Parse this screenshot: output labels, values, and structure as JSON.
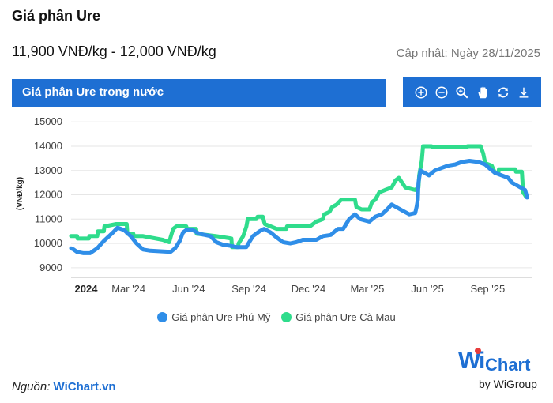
{
  "page": {
    "title": "Giá phân Ure",
    "price_range": "11,900 VNĐ/kg - 12,000 VNĐ/kg",
    "updated": "Cập nhật: Ngày 28/11/2025",
    "section_title": "Giá phân Ure trong nước",
    "source_prefix": "Nguồn: ",
    "source_link": "WiChart.vn",
    "logo_w": "Wi",
    "logo_rest": "Chart",
    "logo_by": "by WiGroup"
  },
  "toolbar": {
    "items": [
      {
        "name": "zoom-in-icon"
      },
      {
        "name": "zoom-out-icon"
      },
      {
        "name": "magnify-icon"
      },
      {
        "name": "pan-hand-icon"
      },
      {
        "name": "reset-icon"
      },
      {
        "name": "download-icon"
      }
    ],
    "color": "#1e6fd3"
  },
  "chart_data": {
    "type": "line",
    "ylabel": "(VNĐ/kg)",
    "xlabel": "",
    "title": "",
    "ylim": [
      8800,
      15300
    ],
    "yticks": [
      9000,
      10000,
      11000,
      12000,
      13000,
      14000,
      15000
    ],
    "ytick_labels": [
      "9000",
      "10000",
      "11000",
      "12000",
      "13000",
      "14000",
      "15000"
    ],
    "x_range": [
      "2024-01-01",
      "2025-12-05"
    ],
    "xticks": [
      {
        "date": "2024-01-01",
        "label": "2024",
        "bold": true
      },
      {
        "date": "2024-03-01",
        "label": "Mar '24",
        "bold": false
      },
      {
        "date": "2024-06-01",
        "label": "Jun '24",
        "bold": false
      },
      {
        "date": "2024-09-01",
        "label": "Sep '24",
        "bold": false
      },
      {
        "date": "2024-12-01",
        "label": "Dec '24",
        "bold": false
      },
      {
        "date": "2025-03-01",
        "label": "Mar '25",
        "bold": false
      },
      {
        "date": "2025-06-01",
        "label": "Jun '25",
        "bold": false
      },
      {
        "date": "2025-09-01",
        "label": "Sep '25",
        "bold": false
      }
    ],
    "grid": true,
    "legend_position": "bottom",
    "series": [
      {
        "name": "Giá phân Ure Cà Mau",
        "color": "#2fdc8c",
        "points": [
          [
            "2024-01-01",
            10300
          ],
          [
            "2024-01-10",
            10300
          ],
          [
            "2024-01-11",
            10200
          ],
          [
            "2024-01-28",
            10200
          ],
          [
            "2024-01-29",
            10300
          ],
          [
            "2024-02-10",
            10300
          ],
          [
            "2024-02-11",
            10500
          ],
          [
            "2024-02-20",
            10500
          ],
          [
            "2024-02-21",
            10700
          ],
          [
            "2024-03-01",
            10750
          ],
          [
            "2024-03-10",
            10800
          ],
          [
            "2024-03-26",
            10800
          ],
          [
            "2024-03-27",
            10400
          ],
          [
            "2024-04-05",
            10400
          ],
          [
            "2024-04-06",
            10300
          ],
          [
            "2024-04-20",
            10300
          ],
          [
            "2024-05-20",
            10150
          ],
          [
            "2024-05-30",
            10050
          ],
          [
            "2024-06-01",
            10250
          ],
          [
            "2024-06-05",
            10600
          ],
          [
            "2024-06-10",
            10700
          ],
          [
            "2024-06-25",
            10700
          ],
          [
            "2024-06-26",
            10600
          ],
          [
            "2024-07-10",
            10600
          ],
          [
            "2024-07-11",
            10400
          ],
          [
            "2024-08-10",
            10300
          ],
          [
            "2024-09-02",
            10200
          ],
          [
            "2024-09-03",
            9850
          ],
          [
            "2024-09-12",
            9850
          ],
          [
            "2024-09-13",
            10000
          ],
          [
            "2024-09-20",
            10300
          ],
          [
            "2024-09-25",
            10700
          ],
          [
            "2024-09-27",
            11000
          ],
          [
            "2024-10-10",
            11000
          ],
          [
            "2024-10-12",
            11100
          ],
          [
            "2024-10-20",
            11100
          ],
          [
            "2024-10-23",
            10800
          ],
          [
            "2024-11-01",
            10700
          ],
          [
            "2024-11-10",
            10600
          ],
          [
            "2024-11-25",
            10600
          ],
          [
            "2024-11-26",
            10700
          ],
          [
            "2024-12-31",
            10700
          ],
          [
            "2025-01-10",
            10900
          ],
          [
            "2025-01-20",
            11000
          ],
          [
            "2025-01-22",
            11200
          ],
          [
            "2025-01-30",
            11300
          ],
          [
            "2025-02-03",
            11500
          ],
          [
            "2025-02-10",
            11600
          ],
          [
            "2025-02-17",
            11800
          ],
          [
            "2025-03-10",
            11800
          ],
          [
            "2025-03-12",
            11500
          ],
          [
            "2025-03-20",
            11400
          ],
          [
            "2025-04-01",
            11400
          ],
          [
            "2025-04-05",
            11700
          ],
          [
            "2025-04-10",
            11800
          ],
          [
            "2025-04-16",
            12100
          ],
          [
            "2025-04-25",
            12200
          ],
          [
            "2025-05-05",
            12300
          ],
          [
            "2025-05-11",
            12600
          ],
          [
            "2025-05-16",
            12700
          ],
          [
            "2025-05-21",
            12500
          ],
          [
            "2025-05-26",
            12300
          ],
          [
            "2025-06-10",
            12200
          ],
          [
            "2025-06-15",
            12300
          ],
          [
            "2025-06-16",
            12800
          ],
          [
            "2025-06-20",
            13400
          ],
          [
            "2025-06-22",
            14000
          ],
          [
            "2025-07-05",
            14000
          ],
          [
            "2025-07-06",
            13950
          ],
          [
            "2025-08-28",
            13950
          ],
          [
            "2025-08-29",
            14000
          ],
          [
            "2025-09-18",
            14000
          ],
          [
            "2025-09-22",
            13700
          ],
          [
            "2025-09-25",
            13300
          ],
          [
            "2025-10-05",
            13200
          ],
          [
            "2025-10-10",
            12900
          ],
          [
            "2025-10-15",
            12900
          ],
          [
            "2025-10-16",
            13050
          ],
          [
            "2025-11-10",
            13050
          ],
          [
            "2025-11-11",
            12950
          ],
          [
            "2025-11-20",
            12950
          ],
          [
            "2025-11-22",
            12100
          ],
          [
            "2025-11-26",
            11950
          ]
        ]
      },
      {
        "name": "Giá phân Ure Phú Mỹ",
        "color": "#2f8ee8",
        "points": [
          [
            "2024-01-01",
            9800
          ],
          [
            "2024-01-05",
            9750
          ],
          [
            "2024-01-10",
            9650
          ],
          [
            "2024-01-20",
            9600
          ],
          [
            "2024-01-30",
            9600
          ],
          [
            "2024-02-10",
            9800
          ],
          [
            "2024-02-20",
            10100
          ],
          [
            "2024-03-05",
            10450
          ],
          [
            "2024-03-12",
            10650
          ],
          [
            "2024-03-22",
            10550
          ],
          [
            "2024-04-01",
            10300
          ],
          [
            "2024-04-10",
            10000
          ],
          [
            "2024-04-20",
            9750
          ],
          [
            "2024-05-01",
            9700
          ],
          [
            "2024-06-01",
            9650
          ],
          [
            "2024-06-08",
            9800
          ],
          [
            "2024-06-15",
            10100
          ],
          [
            "2024-06-20",
            10450
          ],
          [
            "2024-06-25",
            10550
          ],
          [
            "2024-07-05",
            10550
          ],
          [
            "2024-07-15",
            10400
          ],
          [
            "2024-08-01",
            10300
          ],
          [
            "2024-08-10",
            10050
          ],
          [
            "2024-08-20",
            9950
          ],
          [
            "2024-09-01",
            9900
          ],
          [
            "2024-09-10",
            9850
          ],
          [
            "2024-09-25",
            9850
          ],
          [
            "2024-09-27",
            9950
          ],
          [
            "2024-10-05",
            10300
          ],
          [
            "2024-10-15",
            10500
          ],
          [
            "2024-10-22",
            10600
          ],
          [
            "2024-11-01",
            10450
          ],
          [
            "2024-11-10",
            10250
          ],
          [
            "2024-11-20",
            10050
          ],
          [
            "2024-12-01",
            10000
          ],
          [
            "2024-12-10",
            10050
          ],
          [
            "2024-12-20",
            10150
          ],
          [
            "2025-01-10",
            10150
          ],
          [
            "2025-01-20",
            10300
          ],
          [
            "2025-02-01",
            10350
          ],
          [
            "2025-02-05",
            10450
          ],
          [
            "2025-02-12",
            10600
          ],
          [
            "2025-02-20",
            10600
          ],
          [
            "2025-03-01",
            11000
          ],
          [
            "2025-03-10",
            11200
          ],
          [
            "2025-03-18",
            11000
          ],
          [
            "2025-04-01",
            10900
          ],
          [
            "2025-04-10",
            11100
          ],
          [
            "2025-04-20",
            11200
          ],
          [
            "2025-04-28",
            11400
          ],
          [
            "2025-05-05",
            11600
          ],
          [
            "2025-05-15",
            11450
          ],
          [
            "2025-05-25",
            11300
          ],
          [
            "2025-06-01",
            11200
          ],
          [
            "2025-06-10",
            11250
          ],
          [
            "2025-06-12",
            11500
          ],
          [
            "2025-06-14",
            11800
          ],
          [
            "2025-06-15",
            12500
          ],
          [
            "2025-06-18",
            13000
          ],
          [
            "2025-07-01",
            12800
          ],
          [
            "2025-07-10",
            13000
          ],
          [
            "2025-07-20",
            13100
          ],
          [
            "2025-07-30",
            13200
          ],
          [
            "2025-08-10",
            13250
          ],
          [
            "2025-08-20",
            13350
          ],
          [
            "2025-09-01",
            13400
          ],
          [
            "2025-09-15",
            13350
          ],
          [
            "2025-09-25",
            13250
          ],
          [
            "2025-10-01",
            13100
          ],
          [
            "2025-10-10",
            12900
          ],
          [
            "2025-10-20",
            12800
          ],
          [
            "2025-10-30",
            12700
          ],
          [
            "2025-11-05",
            12500
          ],
          [
            "2025-11-15",
            12350
          ],
          [
            "2025-11-25",
            12200
          ],
          [
            "2025-11-28",
            11900
          ]
        ]
      }
    ]
  },
  "legend": [
    {
      "label": "Giá phân Ure Phú Mỹ",
      "color": "#2f8ee8"
    },
    {
      "label": "Giá phân Ure Cà Mau",
      "color": "#2fdc8c"
    }
  ]
}
